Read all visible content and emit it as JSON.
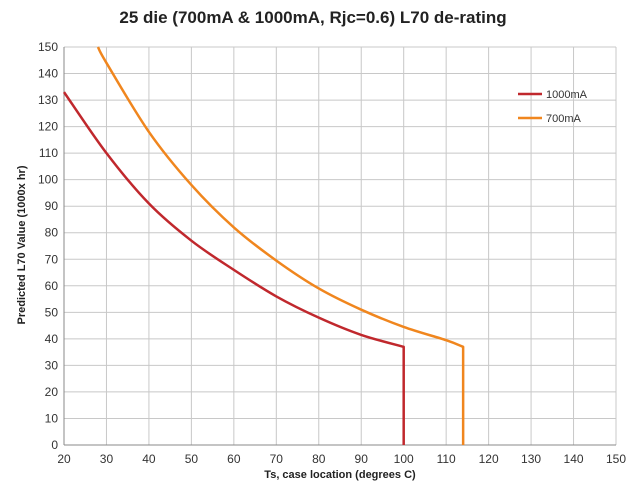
{
  "chart_data": {
    "type": "line",
    "title": "25 die (700mA & 1000mA, Rjc=0.6) L70 de-rating",
    "xlabel": "Ts, case location (degrees C)",
    "ylabel": "Predicted L70 Value (1000x hr)",
    "xlim": [
      20,
      150
    ],
    "ylim": [
      0,
      150
    ],
    "xticks": [
      20,
      30,
      40,
      50,
      60,
      70,
      80,
      90,
      100,
      110,
      120,
      130,
      140,
      150
    ],
    "yticks": [
      0,
      10,
      20,
      30,
      40,
      50,
      60,
      70,
      80,
      90,
      100,
      110,
      120,
      130,
      140,
      150
    ],
    "grid": true,
    "legend_position": "top-right",
    "series": [
      {
        "name": "1000mA",
        "color": "#c0282d",
        "points": [
          [
            20,
            133
          ],
          [
            30,
            110
          ],
          [
            40,
            91
          ],
          [
            50,
            77
          ],
          [
            60,
            66
          ],
          [
            70,
            56
          ],
          [
            80,
            48
          ],
          [
            90,
            41.5
          ],
          [
            100,
            37
          ],
          [
            100,
            0
          ]
        ]
      },
      {
        "name": "700mA",
        "color": "#f0861e",
        "points": [
          [
            28,
            150
          ],
          [
            30,
            144
          ],
          [
            40,
            118
          ],
          [
            50,
            98
          ],
          [
            60,
            82
          ],
          [
            70,
            69.5
          ],
          [
            80,
            59
          ],
          [
            90,
            51
          ],
          [
            100,
            44.5
          ],
          [
            110,
            39.5
          ],
          [
            114,
            37
          ],
          [
            114,
            0
          ]
        ]
      }
    ]
  }
}
